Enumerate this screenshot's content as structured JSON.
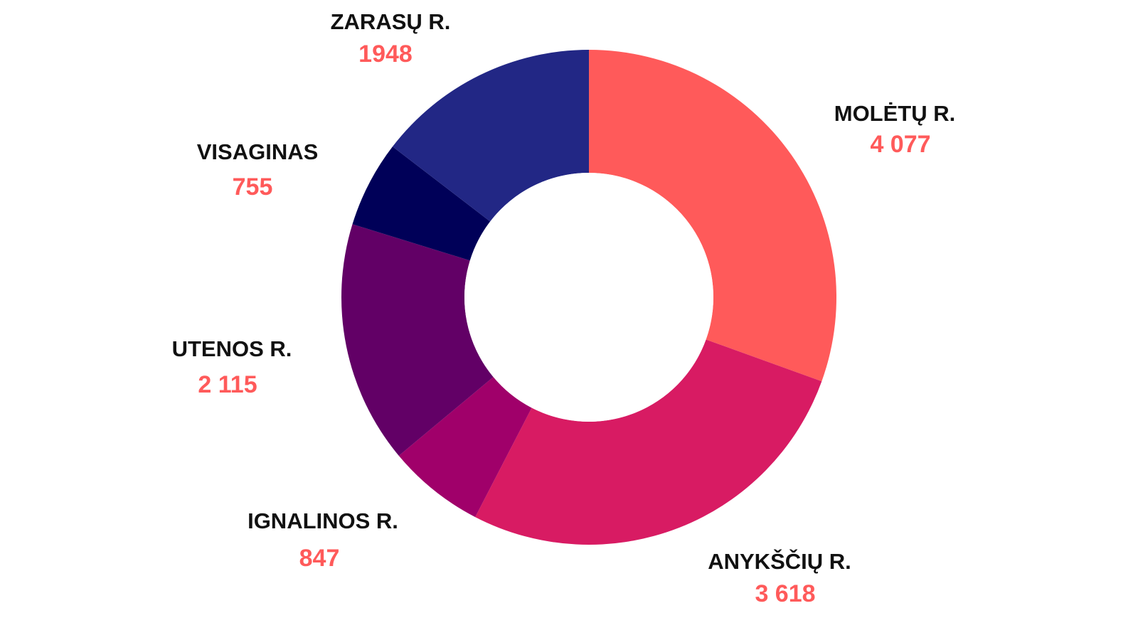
{
  "chart_data": {
    "type": "pie",
    "donut": true,
    "slices": [
      {
        "label": "MOLĖTŲ R.",
        "value": 4077,
        "display": "4 077",
        "color": "#ff5a5a"
      },
      {
        "label": "ANYKŠČIŲ R.",
        "value": 3618,
        "display": "3 618",
        "color": "#d81b63"
      },
      {
        "label": "IGNALINOS R.",
        "value": 847,
        "display": "847",
        "color": "#a0006a"
      },
      {
        "label": "UTENOS R.",
        "value": 2115,
        "display": "2 115",
        "color": "#620066"
      },
      {
        "label": "VISAGINAS",
        "value": 755,
        "display": "755",
        "color": "#000058"
      },
      {
        "label": "ZARASŲ R.",
        "value": 1948,
        "display": "1948",
        "color": "#222785"
      }
    ],
    "value_color": "#ff5a5a",
    "label_color": "#111111",
    "legend": "none"
  }
}
